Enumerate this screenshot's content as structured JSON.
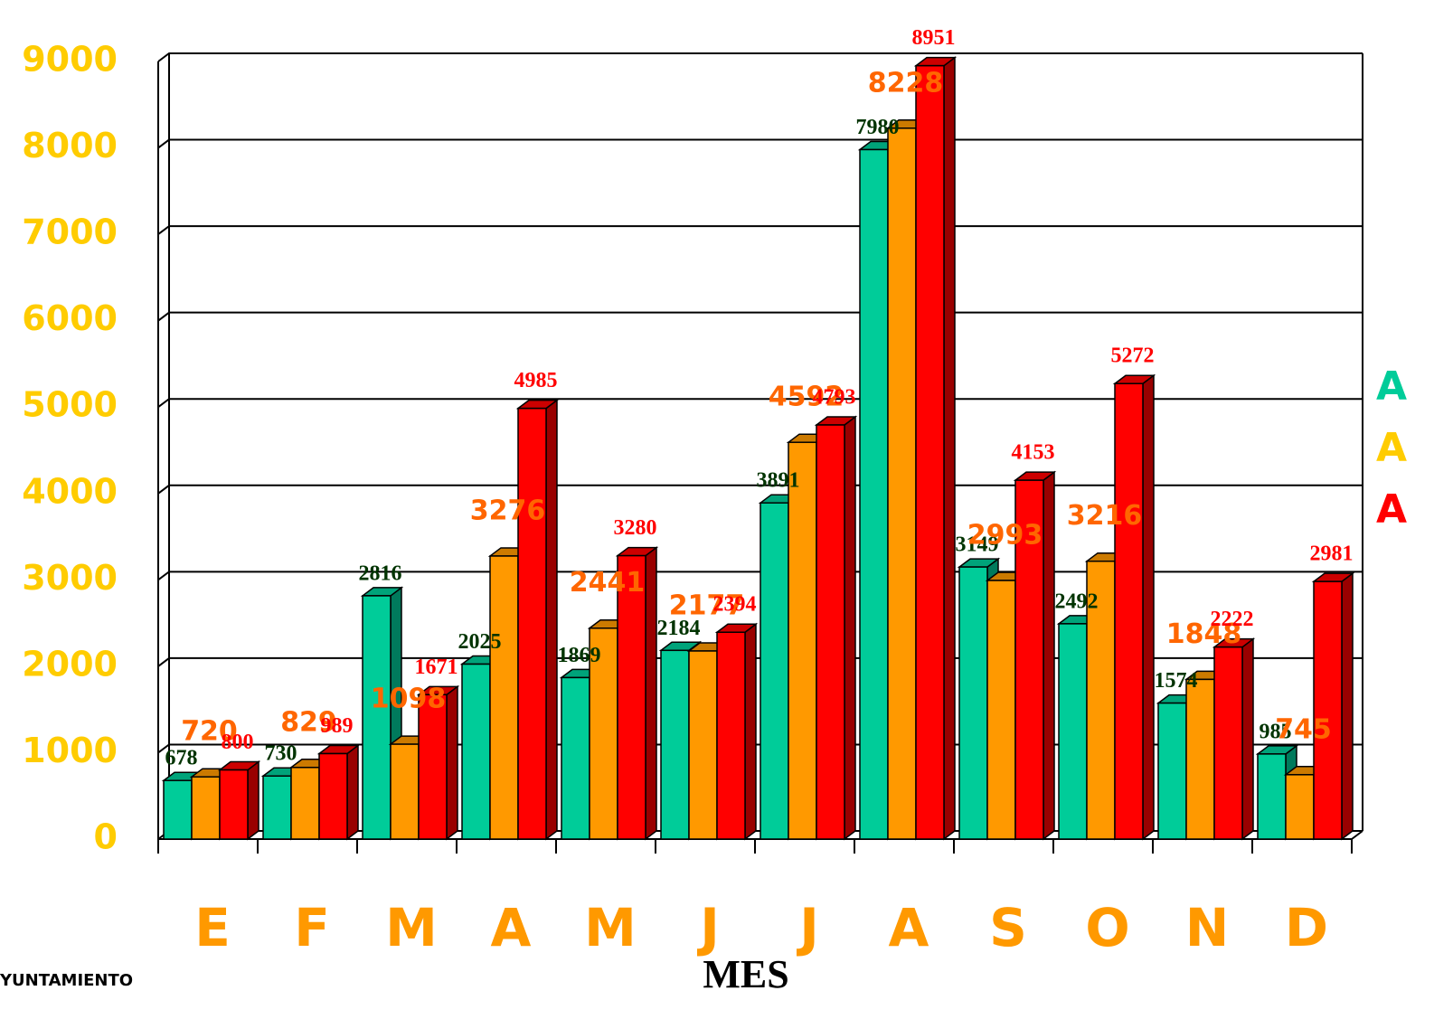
{
  "chart_data": {
    "type": "bar3d",
    "x_label": "MES",
    "logo_text": "YUNTAMIENTO",
    "categories": [
      "E",
      "F",
      "M",
      "A",
      "M",
      "J",
      "J",
      "A",
      "S",
      "O",
      "N",
      "D"
    ],
    "series": [
      {
        "name": "A",
        "color": "#00cc99",
        "legend_color": "#00cc99",
        "label_color": "#003300",
        "values": [
          678,
          730,
          2816,
          2025,
          1869,
          2184,
          3891,
          7980,
          3149,
          2492,
          1574,
          985
        ]
      },
      {
        "name": "A",
        "color": "#ff9900",
        "legend_color": "#ffcc00",
        "label_color": "#ff6600",
        "values": [
          720,
          829,
          1098,
          3276,
          2441,
          2177,
          4592,
          8228,
          2993,
          3216,
          1848,
          745
        ]
      },
      {
        "name": "A",
        "color": "#ff0000",
        "legend_color": "#ff0000",
        "label_color": "#ff0000",
        "values": [
          800,
          989,
          1671,
          4985,
          3280,
          2394,
          4793,
          8951,
          4153,
          5272,
          2222,
          2981
        ]
      }
    ],
    "ylim": [
      0,
      9000
    ],
    "yticks": [
      0,
      1000,
      2000,
      3000,
      4000,
      5000,
      6000,
      7000,
      8000,
      9000
    ],
    "grid": true
  }
}
